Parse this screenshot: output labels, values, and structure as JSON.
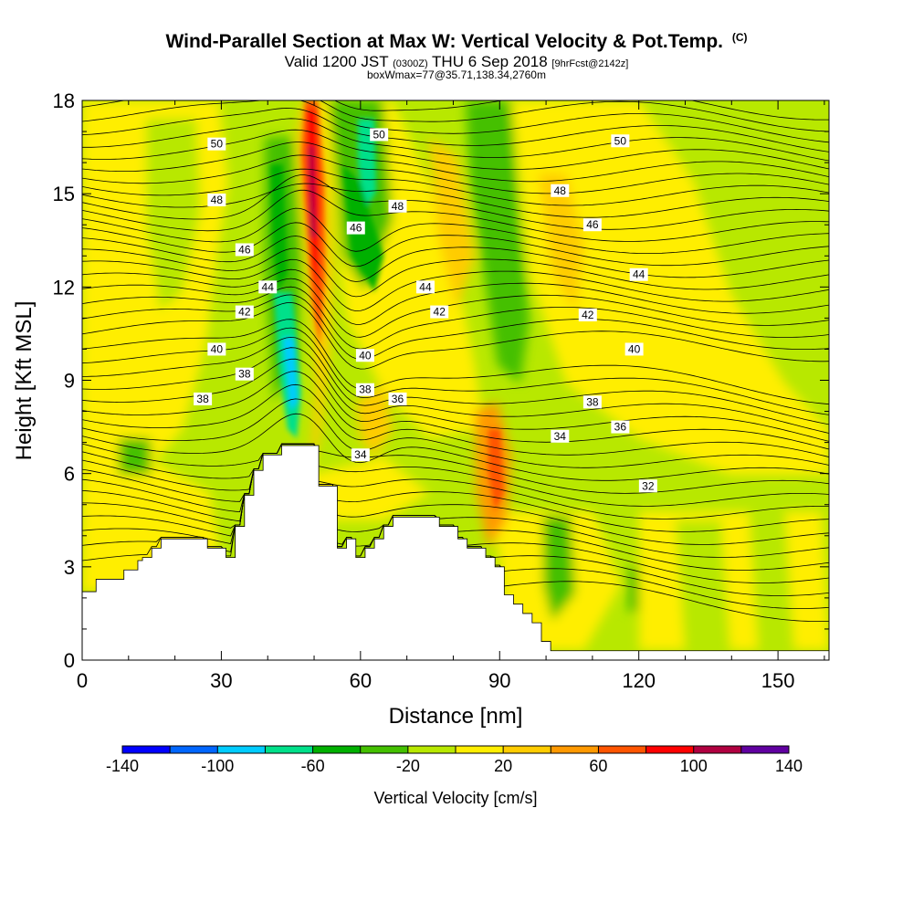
{
  "title": "Wind-Parallel Section at Max W: Vertical Velocity & Pot.Temp.",
  "title_mark": "(C)",
  "subtitle_a": "Valid 1200 JST",
  "subtitle_b": "(0300Z)",
  "subtitle_c": "THU 6 Sep 2018",
  "subtitle_d": "[9hrFcst@2142z]",
  "subtitle_line3": "boxWmax=77@35.71,138.34,2760m",
  "chart_data": {
    "type": "heatmap",
    "xlabel": "Distance [nm]",
    "ylabel": "Height [Kft MSL]",
    "xlim": [
      0,
      161
    ],
    "ylim": [
      0,
      18
    ],
    "x_ticks": [
      0,
      30,
      60,
      90,
      120,
      150
    ],
    "y_ticks": [
      0,
      3,
      6,
      9,
      12,
      15,
      18
    ],
    "grid": false,
    "colorbar": {
      "label": "Vertical Velocity [cm/s]",
      "levels": [
        -140,
        -120,
        -100,
        -80,
        -60,
        -40,
        -20,
        0,
        20,
        40,
        60,
        80,
        100,
        120,
        140
      ],
      "tick_labels": [
        -140,
        -100,
        -60,
        -20,
        20,
        60,
        100,
        140
      ],
      "colors": [
        "#0000ff",
        "#0066ff",
        "#00ccff",
        "#00e08a",
        "#00b000",
        "#44c000",
        "#b8e800",
        "#ffee00",
        "#ffcc00",
        "#ff9900",
        "#ff5500",
        "#ff0000",
        "#b00040",
        "#6000a0"
      ]
    },
    "contour_field": "Potential temperature",
    "contour_labels": [
      {
        "value": 50,
        "x": 29,
        "y": 16.6
      },
      {
        "value": 50,
        "x": 64,
        "y": 16.9
      },
      {
        "value": 50,
        "x": 116,
        "y": 16.7
      },
      {
        "value": 48,
        "x": 29,
        "y": 14.8
      },
      {
        "value": 48,
        "x": 68,
        "y": 14.6
      },
      {
        "value": 48,
        "x": 103,
        "y": 15.1
      },
      {
        "value": 46,
        "x": 35,
        "y": 13.2
      },
      {
        "value": 46,
        "x": 59,
        "y": 13.9
      },
      {
        "value": 46,
        "x": 110,
        "y": 14.0
      },
      {
        "value": 44,
        "x": 40,
        "y": 12.0
      },
      {
        "value": 44,
        "x": 74,
        "y": 12.0
      },
      {
        "value": 44,
        "x": 120,
        "y": 12.4
      },
      {
        "value": 42,
        "x": 35,
        "y": 11.2
      },
      {
        "value": 42,
        "x": 77,
        "y": 11.2
      },
      {
        "value": 42,
        "x": 109,
        "y": 11.1
      },
      {
        "value": 40,
        "x": 29,
        "y": 10.0
      },
      {
        "value": 40,
        "x": 61,
        "y": 9.8
      },
      {
        "value": 40,
        "x": 119,
        "y": 10.0
      },
      {
        "value": 38,
        "x": 35,
        "y": 9.2
      },
      {
        "value": 38,
        "x": 26,
        "y": 8.4
      },
      {
        "value": 38,
        "x": 61,
        "y": 8.7
      },
      {
        "value": 38,
        "x": 110,
        "y": 8.3
      },
      {
        "value": 36,
        "x": 68,
        "y": 8.4
      },
      {
        "value": 36,
        "x": 116,
        "y": 7.5
      },
      {
        "value": 34,
        "x": 60,
        "y": 6.6
      },
      {
        "value": 34,
        "x": 103,
        "y": 7.2
      },
      {
        "value": 32,
        "x": 122,
        "y": 5.6
      }
    ],
    "terrain_profile": {
      "x": [
        0,
        3,
        6,
        9,
        12,
        13,
        15,
        17,
        19,
        21,
        23,
        25,
        27,
        29,
        31,
        33,
        35,
        37,
        39,
        41,
        43,
        45,
        47,
        49,
        51,
        53,
        55,
        57,
        59,
        61,
        63,
        65,
        67,
        69,
        71,
        73,
        75,
        77,
        79,
        81,
        83,
        85,
        87,
        89,
        91,
        93,
        95,
        97,
        99,
        101,
        103,
        161
      ],
      "height_kft": [
        2.2,
        2.6,
        2.6,
        2.9,
        3.2,
        3.3,
        3.6,
        3.9,
        3.9,
        3.9,
        3.9,
        3.9,
        3.6,
        3.6,
        3.3,
        4.3,
        5.3,
        6.1,
        6.6,
        6.6,
        6.9,
        6.9,
        6.9,
        6.9,
        5.6,
        5.6,
        3.6,
        3.9,
        3.3,
        3.6,
        3.9,
        4.3,
        4.6,
        4.6,
        4.6,
        4.6,
        4.6,
        4.3,
        4.3,
        3.9,
        3.6,
        3.6,
        3.3,
        3.0,
        2.1,
        1.8,
        1.5,
        1.2,
        0.6,
        0.3,
        0.3,
        0.3
      ]
    },
    "velocity_features": [
      {
        "label": "updraft core",
        "x": 48,
        "y": 13.5,
        "value": 120
      },
      {
        "label": "downdraft",
        "x": 45,
        "y": 9.3,
        "value": -100
      },
      {
        "label": "downdraft",
        "x": 62,
        "y": 16.5,
        "value": -80
      },
      {
        "label": "updraft",
        "x": 90,
        "y": 6.0,
        "value": 60
      }
    ]
  }
}
